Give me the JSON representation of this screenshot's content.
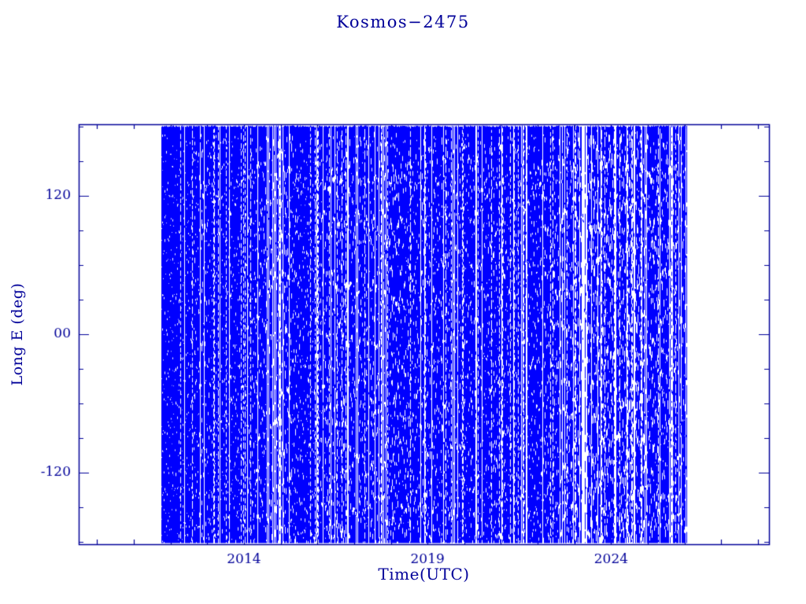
{
  "page": {
    "background": "#ffffff"
  },
  "chart_data": {
    "type": "scatter",
    "title": "Kosmos−2475",
    "xlabel": "Time(UTC)",
    "ylabel": "Long E (deg)",
    "xlim": [
      2009.5,
      2028.3
    ],
    "ylim": [
      -182,
      182
    ],
    "grid": false,
    "legend": null,
    "frame_color": "#000099",
    "text_color": "#000099",
    "x_major_ticks": [
      {
        "value": 2014,
        "label": "2014"
      },
      {
        "value": 2019,
        "label": "2019"
      },
      {
        "value": 2024,
        "label": "2024"
      }
    ],
    "x_minor_step": 1,
    "y_major_ticks": [
      {
        "value": 120,
        "label": "120"
      },
      {
        "value": 0,
        "label": "00"
      },
      {
        "value": -120,
        "label": "-120"
      }
    ],
    "y_minor_step": 30,
    "series": [
      {
        "name": "longitude-ground-track-coverage",
        "color": "#0000ff",
        "x_start": 2011.75,
        "x_end": 2026.05,
        "y_min": -181,
        "y_max": 181,
        "seed": 20475,
        "description": "Dense band of sub-satellite longitude samples covering the full -180..180 deg range from late 2011 through early 2026, with irregular thin white vertical gaps; sparser dotted coverage around 2015, 2016.5 and 2023-2025.",
        "density_profile": [
          [
            2011.75,
            0.93
          ],
          [
            2012.3,
            0.9
          ],
          [
            2012.9,
            0.72
          ],
          [
            2013.4,
            0.85
          ],
          [
            2014.0,
            0.8
          ],
          [
            2014.6,
            0.62
          ],
          [
            2015.1,
            0.55
          ],
          [
            2015.6,
            0.8
          ],
          [
            2016.1,
            0.75
          ],
          [
            2016.6,
            0.55
          ],
          [
            2017.1,
            0.7
          ],
          [
            2017.6,
            0.65
          ],
          [
            2018.1,
            0.6
          ],
          [
            2018.6,
            0.68
          ],
          [
            2019.1,
            0.63
          ],
          [
            2019.6,
            0.7
          ],
          [
            2020.1,
            0.78
          ],
          [
            2020.6,
            0.72
          ],
          [
            2021.1,
            0.68
          ],
          [
            2021.6,
            0.8
          ],
          [
            2022.1,
            0.72
          ],
          [
            2022.6,
            0.6
          ],
          [
            2023.1,
            0.5
          ],
          [
            2023.6,
            0.42
          ],
          [
            2024.1,
            0.52
          ],
          [
            2024.6,
            0.38
          ],
          [
            2025.1,
            0.55
          ],
          [
            2025.6,
            0.62
          ],
          [
            2026.05,
            0.7
          ]
        ]
      }
    ]
  }
}
